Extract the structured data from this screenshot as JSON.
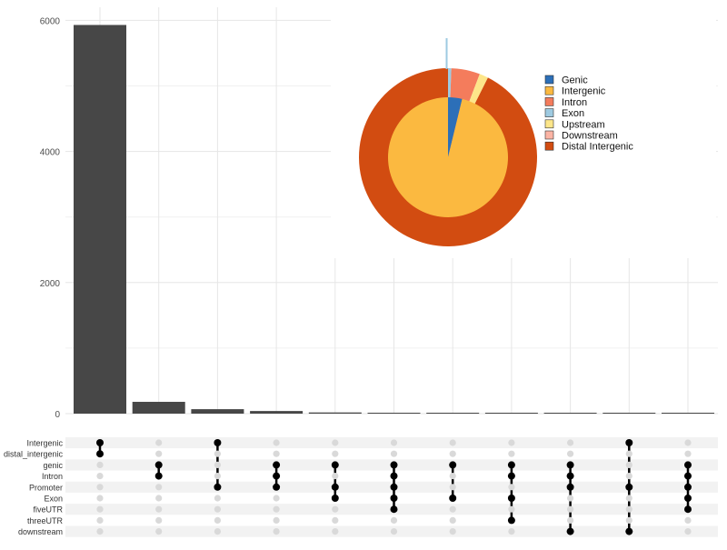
{
  "chart_data": [
    {
      "type": "bar",
      "yticks": [
        "0",
        "2000",
        "4000",
        "6000"
      ],
      "ylim": [
        0,
        6200
      ],
      "grid": true,
      "values": [
        5930,
        180,
        68,
        40,
        18,
        12,
        8,
        6,
        5,
        4,
        3
      ]
    },
    {
      "type": "pie",
      "legend_placement": "right",
      "series": [
        {
          "name": "inner",
          "slices": [
            {
              "label": "Genic",
              "value": 3.8
            },
            {
              "label": "Intergenic",
              "value": 96.2
            }
          ]
        },
        {
          "name": "outer",
          "slices": [
            {
              "label": "Exon",
              "value": 0.6
            },
            {
              "label": "Intron",
              "value": 5.2
            },
            {
              "label": "Upstream",
              "value": 1.6
            },
            {
              "label": "Distal Intergenic",
              "value": 92.6
            }
          ]
        }
      ],
      "legend": [
        {
          "label": "Genic",
          "color": "#2c6fb8"
        },
        {
          "label": "Intergenic",
          "color": "#fbb940"
        },
        {
          "label": "Intron",
          "color": "#f47c5c"
        },
        {
          "label": "Exon",
          "color": "#9ecae1"
        },
        {
          "label": "Upstream",
          "color": "#fde68a"
        },
        {
          "label": "Downstream",
          "color": "#fbb4a4"
        },
        {
          "label": "Distal Intergenic",
          "color": "#d24c11"
        }
      ]
    },
    {
      "type": "table",
      "sets": [
        "Intergenic",
        "distal_intergenic",
        "genic",
        "Intron",
        "Promoter",
        "Exon",
        "fiveUTR",
        "threeUTR",
        "downstream"
      ],
      "intersections": [
        [
          "Intergenic",
          "distal_intergenic"
        ],
        [
          "genic",
          "Intron"
        ],
        [
          "Intergenic",
          "Promoter"
        ],
        [
          "genic",
          "Intron",
          "Promoter"
        ],
        [
          "genic",
          "Promoter",
          "Exon"
        ],
        [
          "genic",
          "Intron",
          "Promoter",
          "Exon",
          "fiveUTR"
        ],
        [
          "genic",
          "Exon"
        ],
        [
          "genic",
          "Intron",
          "Exon",
          "threeUTR"
        ],
        [
          "genic",
          "Intron",
          "Promoter",
          "downstream"
        ],
        [
          "Intergenic",
          "Promoter",
          "downstream"
        ],
        [
          "genic",
          "Intron",
          "Promoter",
          "Exon",
          "fiveUTR"
        ]
      ]
    }
  ],
  "colors": {
    "bar": "#474747",
    "dot_active": "#000000",
    "dot_inactive": "#d9d9d9",
    "row_stripe": "#f2f2f2",
    "grid": "#e6e6e6",
    "tick_text": "#4d4d4d"
  }
}
